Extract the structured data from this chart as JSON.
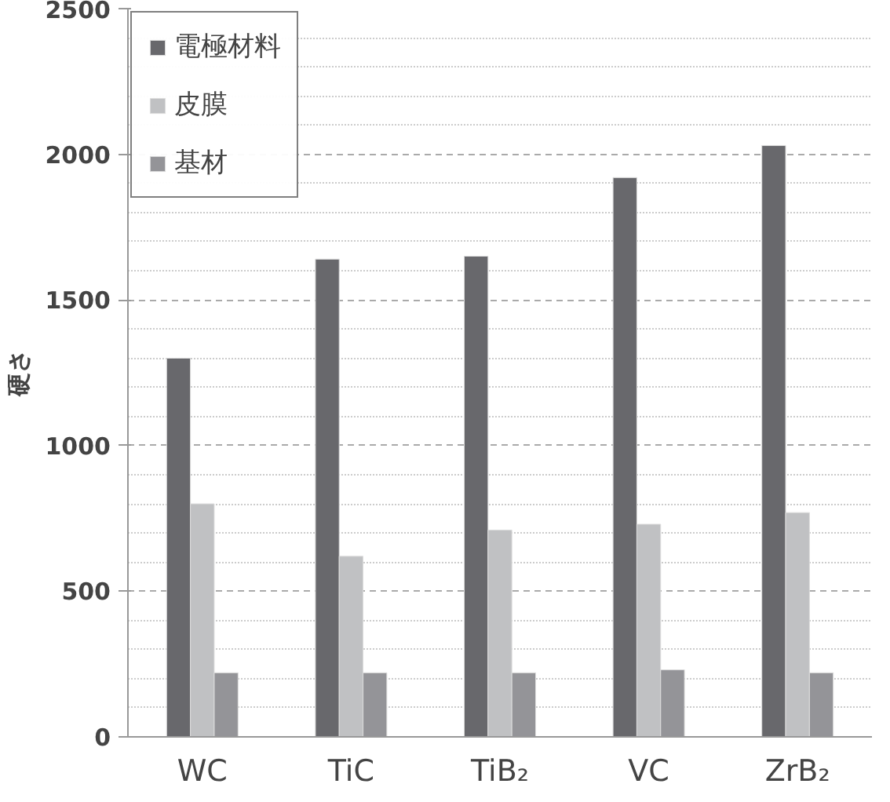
{
  "chart_data": {
    "type": "bar",
    "ylabel": "硬さ",
    "categories": [
      "WC",
      "TiC",
      "TiB₂",
      "VC",
      "ZrB₂"
    ],
    "series": [
      {
        "name": "電極材料",
        "color": "#68686c",
        "values": [
          1300,
          1640,
          1650,
          1920,
          2030
        ]
      },
      {
        "name": "皮膜",
        "color": "#c0c1c3",
        "values": [
          800,
          620,
          710,
          730,
          770
        ]
      },
      {
        "name": "基材",
        "color": "#949498",
        "values": [
          220,
          220,
          220,
          230,
          220
        ]
      }
    ],
    "ylim": [
      0,
      2500
    ],
    "yticks": [
      0,
      {
        "value": 100,
        "label": null
      },
      {
        "value": 200,
        "label": null
      },
      {
        "value": 300,
        "label": null
      },
      {
        "value": 400,
        "label": null
      },
      500,
      {
        "value": 600,
        "label": null
      },
      {
        "value": 700,
        "label": null
      },
      {
        "value": 800,
        "label": null
      },
      {
        "value": 900,
        "label": null
      },
      1000,
      {
        "value": 1100,
        "label": null
      },
      {
        "value": 1200,
        "label": null
      },
      {
        "value": 1300,
        "label": null
      },
      {
        "value": 1400,
        "label": null
      },
      1500,
      {
        "value": 1600,
        "label": null
      },
      {
        "value": 1700,
        "label": null
      },
      {
        "value": 1800,
        "label": null
      },
      {
        "value": 1900,
        "label": null
      },
      2000,
      {
        "value": 2100,
        "label": null
      },
      {
        "value": 2200,
        "label": null
      },
      {
        "value": 2300,
        "label": null
      },
      {
        "value": 2400,
        "label": null
      },
      2500
    ],
    "grid": "y",
    "legend": "top left"
  }
}
